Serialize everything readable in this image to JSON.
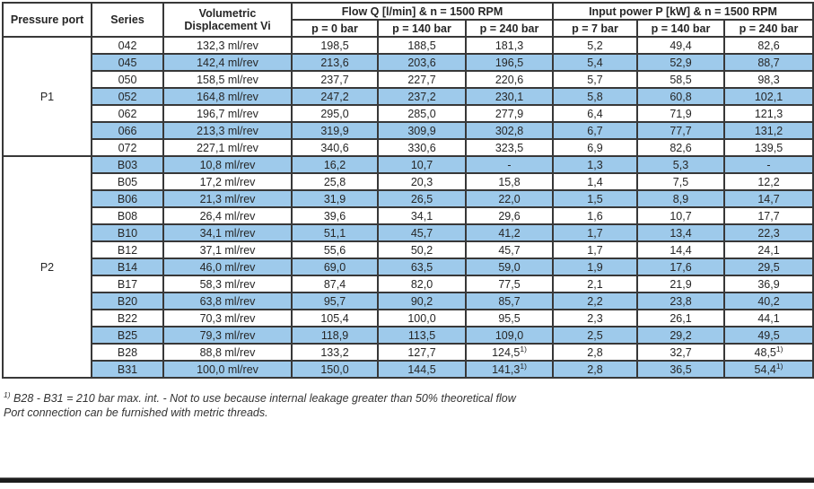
{
  "table": {
    "header": {
      "pressure_port": "Pressure port",
      "series": "Series",
      "displacement_line1": "Volumetric",
      "displacement_line2": "Displacement Vi",
      "flow_group": "Flow Q [l/min] & n = 1500 RPM",
      "power_group": "Input power P [kW] & n = 1500 RPM",
      "flow_subcols": [
        "p = 0 bar",
        "p = 140 bar",
        "p = 240 bar"
      ],
      "power_subcols": [
        "p = 7 bar",
        "p = 140 bar",
        "p = 240 bar"
      ]
    },
    "groups": [
      {
        "port": "P1",
        "rows": [
          {
            "series": "042",
            "displacement": "132,3 ml/rev",
            "flow": [
              "198,5",
              "188,5",
              "181,3"
            ],
            "power": [
              "5,2",
              "49,4",
              "82,6"
            ],
            "highlight": false
          },
          {
            "series": "045",
            "displacement": "142,4 ml/rev",
            "flow": [
              "213,6",
              "203,6",
              "196,5"
            ],
            "power": [
              "5,4",
              "52,9",
              "88,7"
            ],
            "highlight": true
          },
          {
            "series": "050",
            "displacement": "158,5 ml/rev",
            "flow": [
              "237,7",
              "227,7",
              "220,6"
            ],
            "power": [
              "5,7",
              "58,5",
              "98,3"
            ],
            "highlight": false
          },
          {
            "series": "052",
            "displacement": "164,8 ml/rev",
            "flow": [
              "247,2",
              "237,2",
              "230,1"
            ],
            "power": [
              "5,8",
              "60,8",
              "102,1"
            ],
            "highlight": true
          },
          {
            "series": "062",
            "displacement": "196,7 ml/rev",
            "flow": [
              "295,0",
              "285,0",
              "277,9"
            ],
            "power": [
              "6,4",
              "71,9",
              "121,3"
            ],
            "highlight": false
          },
          {
            "series": "066",
            "displacement": "213,3 ml/rev",
            "flow": [
              "319,9",
              "309,9",
              "302,8"
            ],
            "power": [
              "6,7",
              "77,7",
              "131,2"
            ],
            "highlight": true
          },
          {
            "series": "072",
            "displacement": "227,1 ml/rev",
            "flow": [
              "340,6",
              "330,6",
              "323,5"
            ],
            "power": [
              "6,9",
              "82,6",
              "139,5"
            ],
            "highlight": false
          }
        ]
      },
      {
        "port": "P2",
        "rows": [
          {
            "series": "B03",
            "displacement": "10,8 ml/rev",
            "flow": [
              "16,2",
              "10,7",
              "-"
            ],
            "power": [
              "1,3",
              "5,3",
              "-"
            ],
            "highlight": true
          },
          {
            "series": "B05",
            "displacement": "17,2 ml/rev",
            "flow": [
              "25,8",
              "20,3",
              "15,8"
            ],
            "power": [
              "1,4",
              "7,5",
              "12,2"
            ],
            "highlight": false
          },
          {
            "series": "B06",
            "displacement": "21,3 ml/rev",
            "flow": [
              "31,9",
              "26,5",
              "22,0"
            ],
            "power": [
              "1,5",
              "8,9",
              "14,7"
            ],
            "highlight": true
          },
          {
            "series": "B08",
            "displacement": "26,4 ml/rev",
            "flow": [
              "39,6",
              "34,1",
              "29,6"
            ],
            "power": [
              "1,6",
              "10,7",
              "17,7"
            ],
            "highlight": false
          },
          {
            "series": "B10",
            "displacement": "34,1 ml/rev",
            "flow": [
              "51,1",
              "45,7",
              "41,2"
            ],
            "power": [
              "1,7",
              "13,4",
              "22,3"
            ],
            "highlight": true
          },
          {
            "series": "B12",
            "displacement": "37,1 ml/rev",
            "flow": [
              "55,6",
              "50,2",
              "45,7"
            ],
            "power": [
              "1,7",
              "14,4",
              "24,1"
            ],
            "highlight": false
          },
          {
            "series": "B14",
            "displacement": "46,0 ml/rev",
            "flow": [
              "69,0",
              "63,5",
              "59,0"
            ],
            "power": [
              "1,9",
              "17,6",
              "29,5"
            ],
            "highlight": true
          },
          {
            "series": "B17",
            "displacement": "58,3 ml/rev",
            "flow": [
              "87,4",
              "82,0",
              "77,5"
            ],
            "power": [
              "2,1",
              "21,9",
              "36,9"
            ],
            "highlight": false
          },
          {
            "series": "B20",
            "displacement": "63,8 ml/rev",
            "flow": [
              "95,7",
              "90,2",
              "85,7"
            ],
            "power": [
              "2,2",
              "23,8",
              "40,2"
            ],
            "highlight": true
          },
          {
            "series": "B22",
            "displacement": "70,3 ml/rev",
            "flow": [
              "105,4",
              "100,0",
              "95,5"
            ],
            "power": [
              "2,3",
              "26,1",
              "44,1"
            ],
            "highlight": false
          },
          {
            "series": "B25",
            "displacement": "79,3 ml/rev",
            "flow": [
              "118,9",
              "113,5",
              "109,0"
            ],
            "power": [
              "2,5",
              "29,2",
              "49,5"
            ],
            "highlight": true
          },
          {
            "series": "B28",
            "displacement": "88,8 ml/rev",
            "flow": [
              "133,2",
              "127,7",
              {
                "v": "124,5",
                "sup": "1)"
              }
            ],
            "power": [
              "2,8",
              "32,7",
              {
                "v": "48,5",
                "sup": "1)"
              }
            ],
            "highlight": false
          },
          {
            "series": "B31",
            "displacement": "100,0 ml/rev",
            "flow": [
              "150,0",
              "144,5",
              {
                "v": "141,3",
                "sup": "1)"
              }
            ],
            "power": [
              "2,8",
              "36,5",
              {
                "v": "54,4",
                "sup": "1)"
              }
            ],
            "highlight": true
          }
        ]
      }
    ]
  },
  "footnote": {
    "marker": "1)",
    "line1": " B28 - B31 = 210 bar max. int. - Not to use because internal leakage greater than 50% theoretical flow",
    "line2": "Port connection can be furnished with metric threads."
  },
  "colors": {
    "highlight_row": "#9ECAEB",
    "border": "#383838",
    "bottom_rule": "#1c1c1c"
  }
}
